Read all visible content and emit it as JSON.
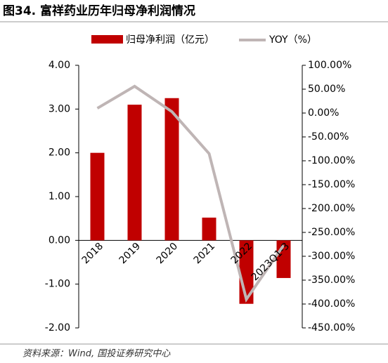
{
  "chart_data": {
    "type": "bar-line",
    "title": "图34. 富祥药业历年归母净利润情况",
    "source": "资料来源：Wind, 国投证券研究中心",
    "categories": [
      "2018",
      "2019",
      "2020",
      "2021",
      "2022",
      "2023Q1-3"
    ],
    "series": [
      {
        "name": "归母净利润（亿元）",
        "type": "bar",
        "color": "#c00000",
        "values": [
          2.0,
          3.1,
          3.25,
          0.52,
          -1.45,
          -0.86
        ]
      },
      {
        "name": "YOY（%）",
        "type": "line",
        "axis": "y2",
        "color": "#bfb5b5",
        "values": [
          10,
          56,
          3,
          -85,
          -390,
          -277
        ]
      }
    ],
    "ylim": [
      -2,
      4
    ],
    "yticks": [
      {
        "value": -2,
        "label": "-2.00"
      },
      {
        "value": -1,
        "label": "-1.00"
      },
      {
        "value": 0,
        "label": "0.00"
      },
      {
        "value": 1,
        "label": "1.00"
      },
      {
        "value": 2,
        "label": "2.00"
      },
      {
        "value": 3,
        "label": "3.00"
      },
      {
        "value": 4,
        "label": "4.00"
      }
    ],
    "y2lim": [
      -450,
      100
    ],
    "y2ticks": [
      {
        "value": -450,
        "label": "-450.00%"
      },
      {
        "value": -400,
        "label": "-400.00%"
      },
      {
        "value": -350,
        "label": "-350.00%"
      },
      {
        "value": -300,
        "label": "-300.00%"
      },
      {
        "value": -250,
        "label": "-250.00%"
      },
      {
        "value": -200,
        "label": "-200.00%"
      },
      {
        "value": -150,
        "label": "-150.00%"
      },
      {
        "value": -100,
        "label": "-100.00%"
      },
      {
        "value": -50,
        "label": "-50.00%"
      },
      {
        "value": 0,
        "label": "0.00%"
      },
      {
        "value": 50,
        "label": "50.00%"
      },
      {
        "value": 100,
        "label": "100.00%"
      }
    ]
  }
}
